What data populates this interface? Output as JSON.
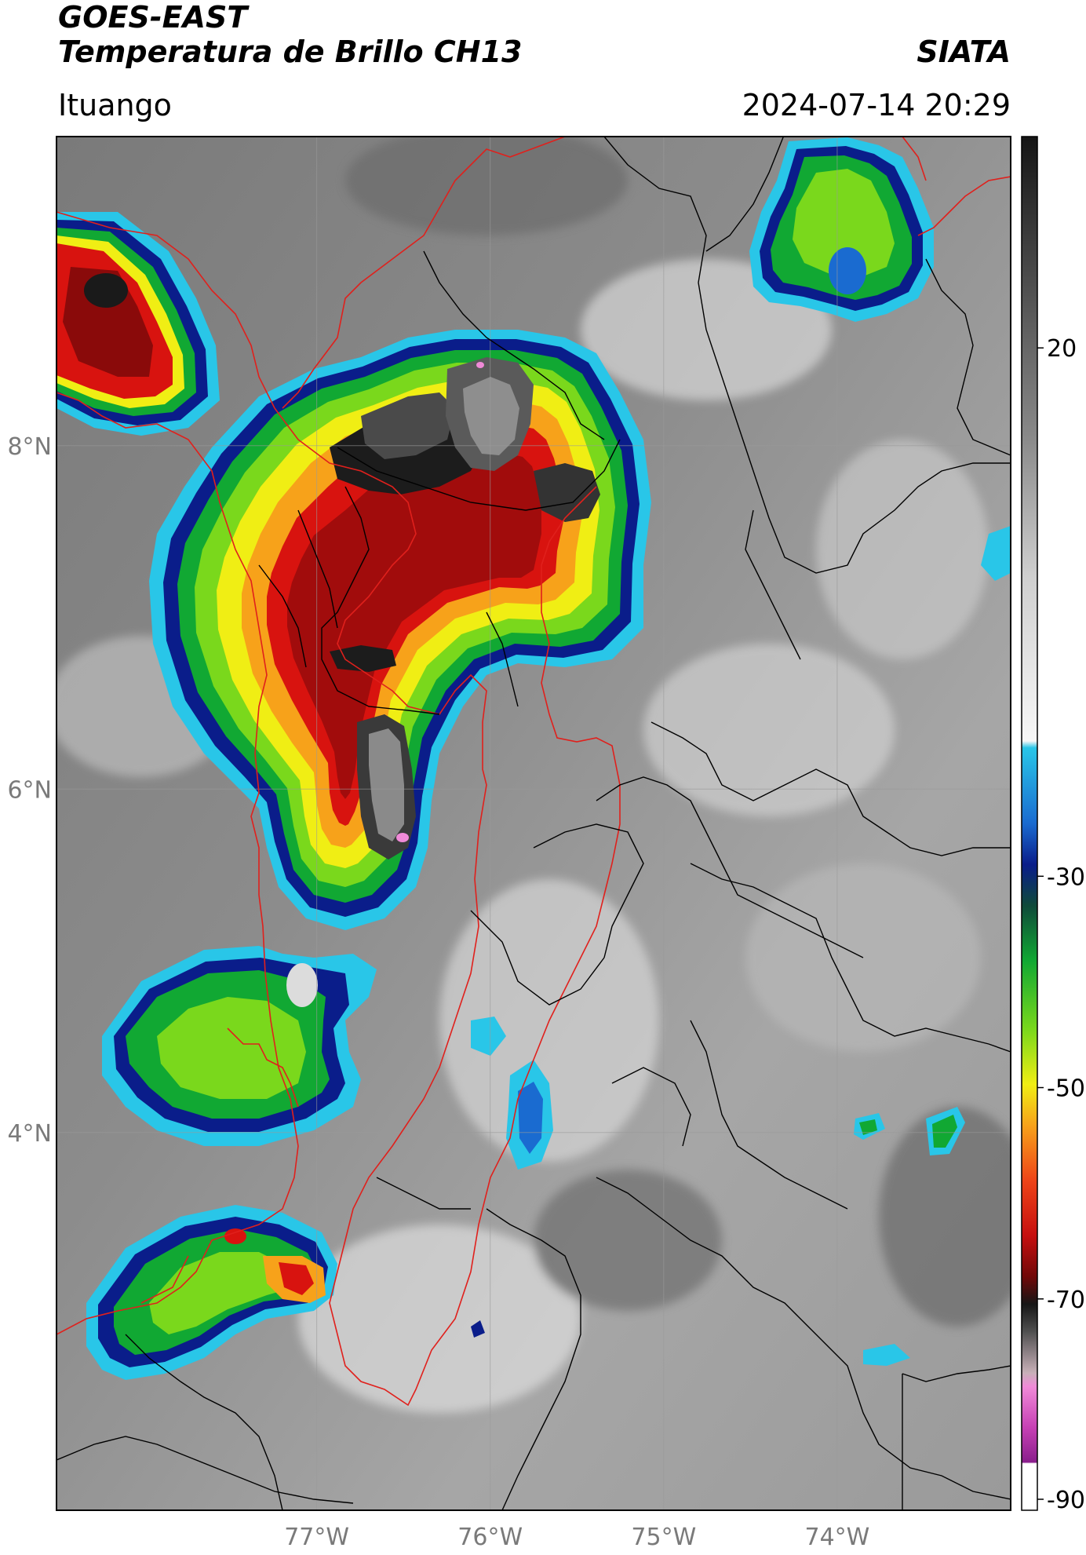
{
  "header": {
    "title_line1": "GOES-EAST",
    "title_line2": "Temperatura de Brillo CH13",
    "org": "SIATA",
    "location": "Ituango",
    "datetime": "2024-07-14 20:29"
  },
  "map": {
    "lon_range": [
      -78.5,
      -73.0
    ],
    "lat_range": [
      1.8,
      9.8
    ],
    "lon_ticks": [
      {
        "value": -77,
        "label": "77°W"
      },
      {
        "value": -76,
        "label": "76°W"
      },
      {
        "value": -75,
        "label": "75°W"
      },
      {
        "value": -74,
        "label": "74°W"
      }
    ],
    "lat_ticks": [
      {
        "value": 8,
        "label": "8°N"
      },
      {
        "value": 6,
        "label": "6°N"
      },
      {
        "value": 4,
        "label": "4°N"
      }
    ],
    "colors": {
      "border_lines": "#000000",
      "region_lines": "#e0201c",
      "grid": "#9a9a9a"
    }
  },
  "colorbar": {
    "vmin": -90,
    "vmax": 40,
    "ticks": [
      {
        "value": 20,
        "label": "20"
      },
      {
        "value": -30,
        "label": "-30"
      },
      {
        "value": -50,
        "label": "-50"
      },
      {
        "value": -70,
        "label": "-70"
      },
      {
        "value": -90,
        "label": "-90"
      }
    ]
  }
}
